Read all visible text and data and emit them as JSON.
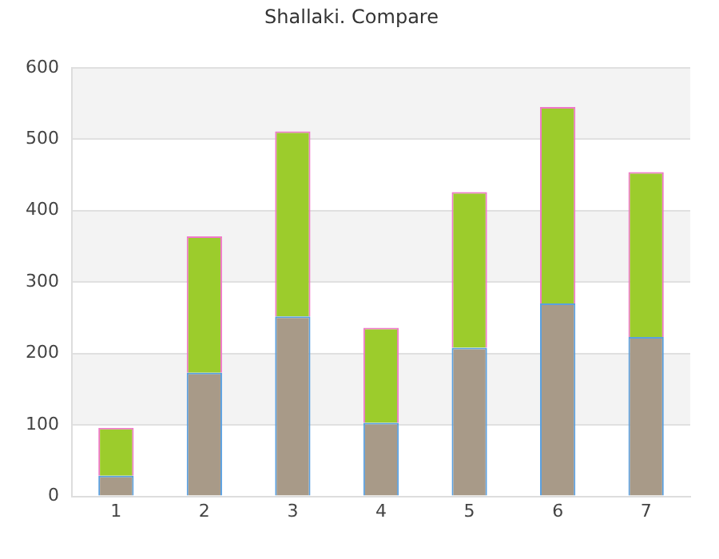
{
  "chart_data": {
    "type": "bar",
    "title": "Shallaki. Compare",
    "categories": [
      "1",
      "2",
      "3",
      "4",
      "5",
      "6",
      "7"
    ],
    "stacked": true,
    "series": [
      {
        "color": "#a89a88",
        "values": [
          29,
          173,
          252,
          103,
          208,
          270,
          223
        ]
      },
      {
        "color": "#9ccc2c",
        "values": [
          67,
          191,
          259,
          133,
          218,
          275,
          231
        ]
      }
    ],
    "ylim": [
      0,
      600
    ],
    "yticks": [
      0,
      100,
      200,
      300,
      400,
      500,
      600
    ],
    "grid": "y",
    "legend": false
  }
}
